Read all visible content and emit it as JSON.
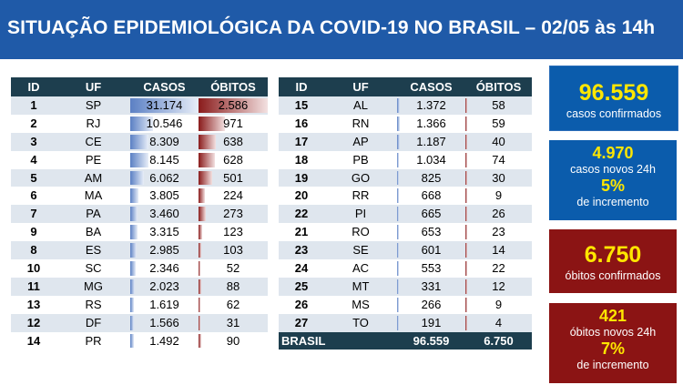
{
  "header": {
    "title": "SITUAÇÃO EPIDEMIOLÓGICA DA COVID-19 NO BRASIL – 02/05 às 14h"
  },
  "columns": [
    "ID",
    "UF",
    "CASOS",
    "ÓBITOS"
  ],
  "table_left": [
    {
      "id": "1",
      "uf": "SP",
      "casos": "31.174",
      "obitos": "2.586",
      "c": 31174,
      "o": 2586
    },
    {
      "id": "2",
      "uf": "RJ",
      "casos": "10.546",
      "obitos": "971",
      "c": 10546,
      "o": 971
    },
    {
      "id": "3",
      "uf": "CE",
      "casos": "8.309",
      "obitos": "638",
      "c": 8309,
      "o": 638
    },
    {
      "id": "4",
      "uf": "PE",
      "casos": "8.145",
      "obitos": "628",
      "c": 8145,
      "o": 628
    },
    {
      "id": "5",
      "uf": "AM",
      "casos": "6.062",
      "obitos": "501",
      "c": 6062,
      "o": 501
    },
    {
      "id": "6",
      "uf": "MA",
      "casos": "3.805",
      "obitos": "224",
      "c": 3805,
      "o": 224
    },
    {
      "id": "7",
      "uf": "PA",
      "casos": "3.460",
      "obitos": "273",
      "c": 3460,
      "o": 273
    },
    {
      "id": "9",
      "uf": "BA",
      "casos": "3.315",
      "obitos": "123",
      "c": 3315,
      "o": 123
    },
    {
      "id": "8",
      "uf": "ES",
      "casos": "2.985",
      "obitos": "103",
      "c": 2985,
      "o": 103
    },
    {
      "id": "10",
      "uf": "SC",
      "casos": "2.346",
      "obitos": "52",
      "c": 2346,
      "o": 52
    },
    {
      "id": "11",
      "uf": "MG",
      "casos": "2.023",
      "obitos": "88",
      "c": 2023,
      "o": 88
    },
    {
      "id": "13",
      "uf": "RS",
      "casos": "1.619",
      "obitos": "62",
      "c": 1619,
      "o": 62
    },
    {
      "id": "12",
      "uf": "DF",
      "casos": "1.566",
      "obitos": "31",
      "c": 1566,
      "o": 31
    },
    {
      "id": "14",
      "uf": "PR",
      "casos": "1.492",
      "obitos": "90",
      "c": 1492,
      "o": 90
    }
  ],
  "table_right": [
    {
      "id": "15",
      "uf": "AL",
      "casos": "1.372",
      "obitos": "58",
      "c": 1372,
      "o": 58
    },
    {
      "id": "16",
      "uf": "RN",
      "casos": "1.366",
      "obitos": "59",
      "c": 1366,
      "o": 59
    },
    {
      "id": "17",
      "uf": "AP",
      "casos": "1.187",
      "obitos": "40",
      "c": 1187,
      "o": 40
    },
    {
      "id": "18",
      "uf": "PB",
      "casos": "1.034",
      "obitos": "74",
      "c": 1034,
      "o": 74
    },
    {
      "id": "19",
      "uf": "GO",
      "casos": "825",
      "obitos": "30",
      "c": 825,
      "o": 30
    },
    {
      "id": "20",
      "uf": "RR",
      "casos": "668",
      "obitos": "9",
      "c": 668,
      "o": 9
    },
    {
      "id": "22",
      "uf": "PI",
      "casos": "665",
      "obitos": "26",
      "c": 665,
      "o": 26
    },
    {
      "id": "21",
      "uf": "RO",
      "casos": "653",
      "obitos": "23",
      "c": 653,
      "o": 23
    },
    {
      "id": "23",
      "uf": "SE",
      "casos": "601",
      "obitos": "14",
      "c": 601,
      "o": 14
    },
    {
      "id": "24",
      "uf": "AC",
      "casos": "553",
      "obitos": "22",
      "c": 553,
      "o": 22
    },
    {
      "id": "25",
      "uf": "MT",
      "casos": "331",
      "obitos": "12",
      "c": 331,
      "o": 12
    },
    {
      "id": "26",
      "uf": "MS",
      "casos": "266",
      "obitos": "9",
      "c": 266,
      "o": 9
    },
    {
      "id": "27",
      "uf": "TO",
      "casos": "191",
      "obitos": "4",
      "c": 191,
      "o": 4
    }
  ],
  "total": {
    "label": "BRASIL",
    "casos": "96.559",
    "obitos": "6.750"
  },
  "summary": {
    "confirmed": {
      "value": "96.559",
      "label": "casos confirmados"
    },
    "new_cases": {
      "value": "4.970",
      "label": "casos novos 24h",
      "pct": "5%",
      "pct_label": "de incremento"
    },
    "deaths": {
      "value": "6.750",
      "label": "óbitos confirmados"
    },
    "new_deaths": {
      "value": "421",
      "label": "óbitos novos 24h",
      "pct": "7%",
      "pct_label": "de incremento"
    }
  },
  "colors": {
    "header": "#1f5aa8",
    "table_header": "#1d3e4e",
    "cases_bar": "#5b80c4",
    "deaths_bar": "#8a1b1b",
    "blue_box": "#0b5cac",
    "red_box": "#8b1414",
    "highlight": "#ffe600"
  }
}
